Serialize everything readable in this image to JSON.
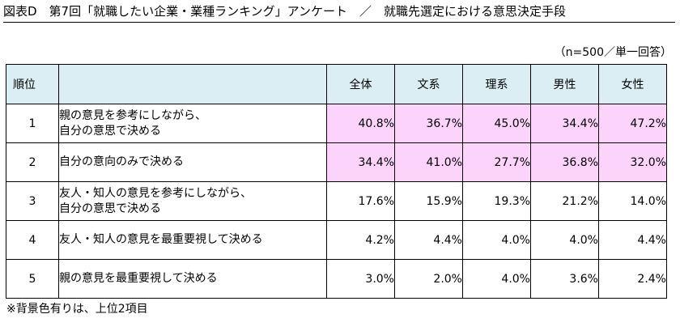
{
  "title": "図表D　第7回「就職したい企業・業種ランキング」アンケート　／　就職先選定における意思決定手段",
  "sample_note": "（n=500／単一回答）",
  "headers": {
    "rank": "順位",
    "label": "",
    "columns": [
      "全体",
      "文系",
      "理系",
      "男性",
      "女性"
    ]
  },
  "rows": [
    {
      "rank": "1",
      "label_lines": [
        "親の意見を参考にしながら、",
        "自分の意思で決める"
      ],
      "values": [
        "40.8%",
        "36.7%",
        "45.0%",
        "34.4%",
        "47.2%"
      ],
      "highlight": true
    },
    {
      "rank": "2",
      "label_lines": [
        "自分の意向のみで決める"
      ],
      "values": [
        "34.4%",
        "41.0%",
        "27.7%",
        "36.8%",
        "32.0%"
      ],
      "highlight": true
    },
    {
      "rank": "3",
      "label_lines": [
        "友人・知人の意見を参考にしながら、",
        "自分の意思で決める"
      ],
      "values": [
        "17.6%",
        "15.9%",
        "19.3%",
        "21.2%",
        "14.0%"
      ],
      "highlight": false
    },
    {
      "rank": "4",
      "label_lines": [
        "友人・知人の意見を最重要視して決める"
      ],
      "values": [
        "4.2%",
        "4.4%",
        "4.0%",
        "4.0%",
        "4.4%"
      ],
      "highlight": false
    },
    {
      "rank": "5",
      "label_lines": [
        "親の意見を最重要視して決める"
      ],
      "values": [
        "3.0%",
        "2.0%",
        "4.0%",
        "3.6%",
        "2.4%"
      ],
      "highlight": false
    }
  ],
  "footnote": "※背景色有りは、上位2項目",
  "colors": {
    "header_bg": "#daeef3",
    "highlight_bg": "#fbd3fb"
  }
}
